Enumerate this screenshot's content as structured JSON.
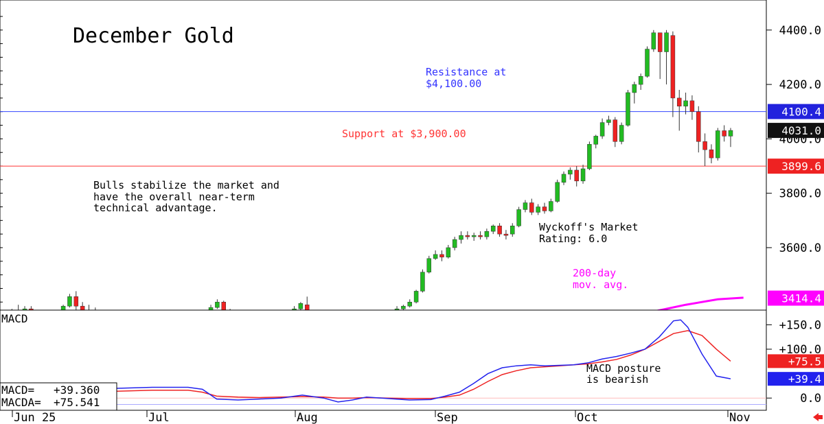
{
  "chart_data": [
    {
      "type": "candlestick",
      "title": "December Gold",
      "x_labels": [
        "Jun 25",
        "Jul",
        "Aug",
        "Sep",
        "Oct",
        "Nov"
      ],
      "y_ticks": [
        "4400.0",
        "4200.0",
        "4000.0",
        "3800.0",
        "3600.0"
      ],
      "ylim": [
        3330,
        4460
      ],
      "candles": [
        {
          "o": 3330,
          "h": 3340,
          "l": 3310,
          "c": 3320
        },
        {
          "o": 3345,
          "h": 3375,
          "l": 3330,
          "c": 3370
        },
        {
          "o": 3370,
          "h": 3390,
          "l": 3350,
          "c": 3355
        },
        {
          "o": 3355,
          "h": 3385,
          "l": 3345,
          "c": 3375
        },
        {
          "o": 3375,
          "h": 3385,
          "l": 3350,
          "c": 3355
        },
        {
          "o": 3350,
          "h": 3360,
          "l": 3310,
          "c": 3320
        },
        {
          "o": 3325,
          "h": 3345,
          "l": 3315,
          "c": 3340
        },
        {
          "o": 3340,
          "h": 3350,
          "l": 3320,
          "c": 3330
        },
        {
          "o": 3330,
          "h": 3365,
          "l": 3325,
          "c": 3355
        },
        {
          "o": 3355,
          "h": 3390,
          "l": 3345,
          "c": 3385
        },
        {
          "o": 3385,
          "h": 3430,
          "l": 3380,
          "c": 3420
        },
        {
          "o": 3420,
          "h": 3440,
          "l": 3370,
          "c": 3385
        },
        {
          "o": 3385,
          "h": 3400,
          "l": 3360,
          "c": 3365
        },
        {
          "o": 3365,
          "h": 3390,
          "l": 3350,
          "c": 3370
        },
        {
          "o": 3370,
          "h": 3380,
          "l": 3345,
          "c": 3355
        },
        {
          "o": 3355,
          "h": 3370,
          "l": 3310,
          "c": 3330
        },
        {
          "o": 3330,
          "h": 3345,
          "l": 3320,
          "c": 3340
        },
        {
          "o": 3340,
          "h": 3345,
          "l": 3325,
          "c": 3335
        },
        {
          "o": 3330,
          "h": 3340,
          "l": 3285,
          "c": 3295
        },
        {
          "o": 3295,
          "h": 3325,
          "l": 3280,
          "c": 3320
        },
        {
          "o": 3320,
          "h": 3355,
          "l": 3315,
          "c": 3345
        },
        {
          "o": 3345,
          "h": 3360,
          "l": 3330,
          "c": 3355
        },
        {
          "o": 3355,
          "h": 3360,
          "l": 3325,
          "c": 3330
        },
        {
          "o": 3330,
          "h": 3345,
          "l": 3320,
          "c": 3340
        },
        {
          "o": 3340,
          "h": 3345,
          "l": 3305,
          "c": 3315
        },
        {
          "o": 3315,
          "h": 3335,
          "l": 3305,
          "c": 3325
        },
        {
          "o": 3325,
          "h": 3340,
          "l": 3315,
          "c": 3330
        },
        {
          "o": 3330,
          "h": 3365,
          "l": 3325,
          "c": 3355
        },
        {
          "o": 3355,
          "h": 3365,
          "l": 3330,
          "c": 3335
        },
        {
          "o": 3335,
          "h": 3350,
          "l": 3330,
          "c": 3345
        },
        {
          "o": 3345,
          "h": 3350,
          "l": 3325,
          "c": 3330
        },
        {
          "o": 3330,
          "h": 3345,
          "l": 3320,
          "c": 3340
        },
        {
          "o": 3340,
          "h": 3390,
          "l": 3335,
          "c": 3380
        },
        {
          "o": 3380,
          "h": 3410,
          "l": 3375,
          "c": 3400
        },
        {
          "o": 3400,
          "h": 3405,
          "l": 3350,
          "c": 3360
        },
        {
          "o": 3360,
          "h": 3375,
          "l": 3335,
          "c": 3345
        },
        {
          "o": 3345,
          "h": 3355,
          "l": 3305,
          "c": 3320
        },
        {
          "o": 3320,
          "h": 3330,
          "l": 3305,
          "c": 3315
        },
        {
          "o": 3315,
          "h": 3325,
          "l": 3300,
          "c": 3310
        },
        {
          "o": 3320,
          "h": 3325,
          "l": 3275,
          "c": 3280
        },
        {
          "o": 3280,
          "h": 3310,
          "l": 3275,
          "c": 3300
        },
        {
          "o": 3300,
          "h": 3345,
          "l": 3295,
          "c": 3340
        },
        {
          "o": 3340,
          "h": 3355,
          "l": 3335,
          "c": 3345
        },
        {
          "o": 3345,
          "h": 3355,
          "l": 3330,
          "c": 3350
        },
        {
          "o": 3350,
          "h": 3365,
          "l": 3340,
          "c": 3355
        },
        {
          "o": 3355,
          "h": 3385,
          "l": 3350,
          "c": 3375
        },
        {
          "o": 3375,
          "h": 3400,
          "l": 3365,
          "c": 3395
        },
        {
          "o": 3390,
          "h": 3420,
          "l": 3330,
          "c": 3340
        },
        {
          "o": 3340,
          "h": 3350,
          "l": 3325,
          "c": 3330
        },
        {
          "o": 3330,
          "h": 3345,
          "l": 3325,
          "c": 3340
        },
        {
          "o": 3340,
          "h": 3345,
          "l": 3325,
          "c": 3330
        },
        {
          "o": 3330,
          "h": 3340,
          "l": 3320,
          "c": 3325
        },
        {
          "o": 3325,
          "h": 3335,
          "l": 3315,
          "c": 3330
        },
        {
          "o": 3330,
          "h": 3335,
          "l": 3320,
          "c": 3325
        },
        {
          "o": 3325,
          "h": 3330,
          "l": 3305,
          "c": 3310
        },
        {
          "o": 3310,
          "h": 3340,
          "l": 3305,
          "c": 3335
        },
        {
          "o": 3335,
          "h": 3340,
          "l": 3300,
          "c": 3305
        },
        {
          "o": 3305,
          "h": 3340,
          "l": 3300,
          "c": 3335
        },
        {
          "o": 3335,
          "h": 3350,
          "l": 3325,
          "c": 3345
        },
        {
          "o": 3345,
          "h": 3360,
          "l": 3335,
          "c": 3350
        },
        {
          "o": 3350,
          "h": 3370,
          "l": 3340,
          "c": 3360
        },
        {
          "o": 3360,
          "h": 3385,
          "l": 3355,
          "c": 3375
        },
        {
          "o": 3375,
          "h": 3390,
          "l": 3370,
          "c": 3385
        },
        {
          "o": 3385,
          "h": 3410,
          "l": 3380,
          "c": 3400
        },
        {
          "o": 3400,
          "h": 3445,
          "l": 3395,
          "c": 3440
        },
        {
          "o": 3440,
          "h": 3520,
          "l": 3435,
          "c": 3510
        },
        {
          "o": 3510,
          "h": 3570,
          "l": 3505,
          "c": 3560
        },
        {
          "o": 3560,
          "h": 3590,
          "l": 3555,
          "c": 3575
        },
        {
          "o": 3575,
          "h": 3590,
          "l": 3550,
          "c": 3565
        },
        {
          "o": 3565,
          "h": 3610,
          "l": 3560,
          "c": 3600
        },
        {
          "o": 3600,
          "h": 3640,
          "l": 3590,
          "c": 3630
        },
        {
          "o": 3630,
          "h": 3660,
          "l": 3615,
          "c": 3645
        },
        {
          "o": 3645,
          "h": 3660,
          "l": 3630,
          "c": 3640
        },
        {
          "o": 3640,
          "h": 3655,
          "l": 3625,
          "c": 3645
        },
        {
          "o": 3645,
          "h": 3660,
          "l": 3630,
          "c": 3640
        },
        {
          "o": 3640,
          "h": 3670,
          "l": 3630,
          "c": 3660
        },
        {
          "o": 3660,
          "h": 3685,
          "l": 3650,
          "c": 3680
        },
        {
          "o": 3680,
          "h": 3690,
          "l": 3640,
          "c": 3650
        },
        {
          "o": 3650,
          "h": 3665,
          "l": 3630,
          "c": 3645
        },
        {
          "o": 3650,
          "h": 3690,
          "l": 3640,
          "c": 3680
        },
        {
          "o": 3680,
          "h": 3750,
          "l": 3675,
          "c": 3740
        },
        {
          "o": 3740,
          "h": 3775,
          "l": 3730,
          "c": 3765
        },
        {
          "o": 3765,
          "h": 3780,
          "l": 3720,
          "c": 3730
        },
        {
          "o": 3730,
          "h": 3760,
          "l": 3720,
          "c": 3750
        },
        {
          "o": 3750,
          "h": 3765,
          "l": 3725,
          "c": 3735
        },
        {
          "o": 3735,
          "h": 3780,
          "l": 3730,
          "c": 3770
        },
        {
          "o": 3770,
          "h": 3850,
          "l": 3765,
          "c": 3840
        },
        {
          "o": 3840,
          "h": 3880,
          "l": 3830,
          "c": 3870
        },
        {
          "o": 3870,
          "h": 3895,
          "l": 3850,
          "c": 3885
        },
        {
          "o": 3885,
          "h": 3900,
          "l": 3825,
          "c": 3845
        },
        {
          "o": 3845,
          "h": 3905,
          "l": 3835,
          "c": 3890
        },
        {
          "o": 3890,
          "h": 3990,
          "l": 3885,
          "c": 3980
        },
        {
          "o": 3980,
          "h": 4015,
          "l": 3965,
          "c": 4010
        },
        {
          "o": 4010,
          "h": 4075,
          "l": 4000,
          "c": 4060
        },
        {
          "o": 4060,
          "h": 4085,
          "l": 4050,
          "c": 4070
        },
        {
          "o": 4070,
          "h": 4080,
          "l": 3970,
          "c": 3990
        },
        {
          "o": 3990,
          "h": 4060,
          "l": 3980,
          "c": 4050
        },
        {
          "o": 4050,
          "h": 4180,
          "l": 4045,
          "c": 4170
        },
        {
          "o": 4170,
          "h": 4210,
          "l": 4130,
          "c": 4200
        },
        {
          "o": 4200,
          "h": 4240,
          "l": 4180,
          "c": 4230
        },
        {
          "o": 4230,
          "h": 4340,
          "l": 4225,
          "c": 4330
        },
        {
          "o": 4330,
          "h": 4400,
          "l": 4320,
          "c": 4390
        },
        {
          "o": 4390,
          "h": 4390,
          "l": 4220,
          "c": 4320
        },
        {
          "o": 4320,
          "h": 4400,
          "l": 4200,
          "c": 4390
        },
        {
          "o": 4380,
          "h": 4395,
          "l": 4080,
          "c": 4150
        },
        {
          "o": 4150,
          "h": 4180,
          "l": 4030,
          "c": 4120
        },
        {
          "o": 4120,
          "h": 4170,
          "l": 4090,
          "c": 4140
        },
        {
          "o": 4140,
          "h": 4160,
          "l": 4070,
          "c": 4100
        },
        {
          "o": 4100,
          "h": 4120,
          "l": 3950,
          "c": 3990
        },
        {
          "o": 3990,
          "h": 4020,
          "l": 3900,
          "c": 3960
        },
        {
          "o": 3960,
          "h": 3980,
          "l": 3910,
          "c": 3930
        },
        {
          "o": 3930,
          "h": 4040,
          "l": 3920,
          "c": 4030
        },
        {
          "o": 4030,
          "h": 4050,
          "l": 3990,
          "c": 4010
        },
        {
          "o": 4010,
          "h": 4040,
          "l": 3970,
          "c": 4031
        }
      ],
      "ma200": {
        "name": "200-day mov. avg.",
        "color": "#ff00ff",
        "points": [
          [
            86,
            3300
          ],
          [
            90,
            3310
          ],
          [
            94,
            3330
          ],
          [
            98,
            3350
          ],
          [
            102,
            3370
          ],
          [
            106,
            3390
          ],
          [
            111,
            3410
          ],
          [
            115,
            3416
          ]
        ]
      },
      "resistance": {
        "value": 4100.4,
        "label_line1": "Resistance at",
        "label_line2": "$4,100.00",
        "color": "#3333ff"
      },
      "support": {
        "value": 3899.6,
        "label": "Support at $3,900.00",
        "color": "#ff3333"
      },
      "last_price": 4031.0,
      "badges": [
        {
          "text": "4100.4",
          "value": 4100.4,
          "color": "#2222dd"
        },
        {
          "text": "4031.0",
          "value": 4031.0,
          "color": "#111111"
        },
        {
          "text": "3899.6",
          "value": 3899.6,
          "color": "#ee2222"
        },
        {
          "text": "3414.4",
          "value": 3414.4,
          "color": "#ff00ff"
        }
      ],
      "annotations": {
        "bulls": [
          "Bulls stabilize the market and",
          "have the overall near-term",
          "technical advantage."
        ],
        "wyckoff": [
          "Wyckoff's Market",
          "Rating: 6.0"
        ],
        "ma_label": [
          "200-day",
          "mov. avg."
        ]
      }
    },
    {
      "type": "line",
      "title": "MACD",
      "ylim": [
        -25,
        180
      ],
      "y_ticks": [
        "+150.0",
        "+100.0",
        "0.0"
      ],
      "series": [
        {
          "name": "MACD",
          "color": "#2222ee",
          "points": [
            [
              0,
              20
            ],
            [
              10,
              22
            ],
            [
              20,
              22
            ],
            [
              24,
              18
            ],
            [
              28,
              -2
            ],
            [
              34,
              -4
            ],
            [
              40,
              -2
            ],
            [
              46,
              0
            ],
            [
              52,
              6
            ],
            [
              58,
              0
            ],
            [
              62,
              -8
            ],
            [
              66,
              -4
            ],
            [
              70,
              2
            ],
            [
              76,
              -1
            ],
            [
              82,
              -4
            ],
            [
              88,
              -3
            ],
            [
              92,
              4
            ],
            [
              96,
              12
            ],
            [
              100,
              30
            ],
            [
              104,
              50
            ],
            [
              108,
              62
            ],
            [
              112,
              66
            ],
            [
              116,
              68
            ],
            [
              120,
              66
            ],
            [
              124,
              67
            ],
            [
              128,
              68
            ],
            [
              132,
              72
            ],
            [
              136,
              80
            ],
            [
              140,
              85
            ],
            [
              144,
              92
            ],
            [
              148,
              100
            ],
            [
              152,
              125
            ],
            [
              156,
              158
            ],
            [
              158,
              160
            ],
            [
              160,
              145
            ],
            [
              164,
              90
            ],
            [
              168,
              45
            ],
            [
              172,
              39.36
            ]
          ]
        },
        {
          "name": "MACDA",
          "color": "#ee2222",
          "points": [
            [
              0,
              14
            ],
            [
              10,
              16
            ],
            [
              20,
              16
            ],
            [
              24,
              12
            ],
            [
              28,
              4
            ],
            [
              34,
              2
            ],
            [
              40,
              1
            ],
            [
              46,
              2
            ],
            [
              52,
              3
            ],
            [
              58,
              2
            ],
            [
              62,
              0
            ],
            [
              66,
              0
            ],
            [
              70,
              1
            ],
            [
              76,
              0
            ],
            [
              82,
              -1
            ],
            [
              88,
              -1
            ],
            [
              92,
              2
            ],
            [
              96,
              6
            ],
            [
              100,
              18
            ],
            [
              104,
              34
            ],
            [
              108,
              48
            ],
            [
              112,
              56
            ],
            [
              116,
              62
            ],
            [
              120,
              64
            ],
            [
              124,
              66
            ],
            [
              128,
              68
            ],
            [
              132,
              70
            ],
            [
              136,
              74
            ],
            [
              140,
              79
            ],
            [
              144,
              88
            ],
            [
              148,
              100
            ],
            [
              152,
              116
            ],
            [
              156,
              132
            ],
            [
              160,
              138
            ],
            [
              164,
              128
            ],
            [
              168,
              100
            ],
            [
              172,
              75.541
            ]
          ]
        }
      ],
      "badges": [
        {
          "text": "+75.5",
          "value": 75.541,
          "color": "#ee2222"
        },
        {
          "text": "+39.4",
          "value": 39.36,
          "color": "#2222ee"
        }
      ],
      "legend": [
        {
          "label": "MACD=",
          "value": "+39.360"
        },
        {
          "label": "MACDA=",
          "value": "+75.541"
        }
      ],
      "annotation": [
        "MACD posture",
        "is bearish"
      ]
    }
  ]
}
